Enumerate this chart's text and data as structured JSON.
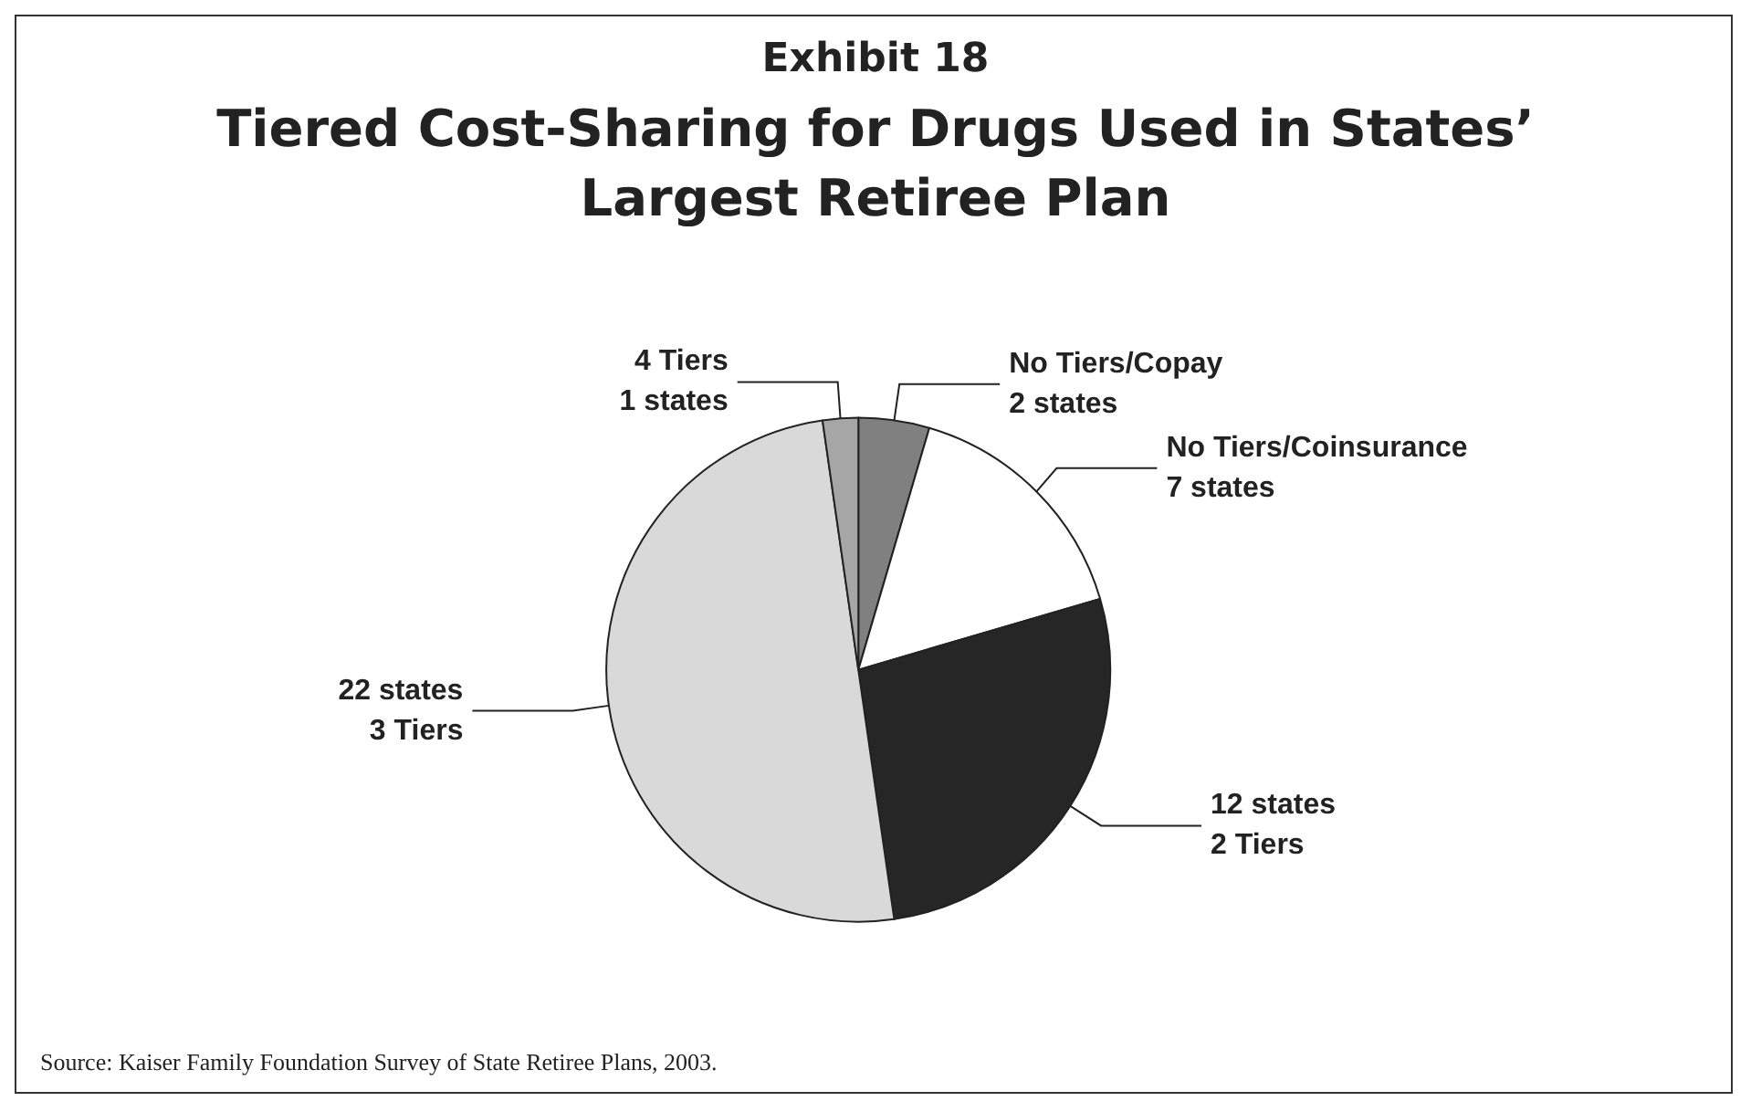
{
  "chart_data": {
    "type": "pie",
    "title": "Exhibit 18",
    "subtitle": "Tiered Cost-Sharing for Drugs Used in States’ Largest Retiree Plan",
    "categories": [
      "No Tiers/Copay",
      "No Tiers/Coinsurance",
      "2 Tiers",
      "3 Tiers",
      "4 Tiers"
    ],
    "values": [
      2,
      7,
      12,
      22,
      1
    ],
    "value_labels": [
      "2 states",
      "7 states",
      "12 states",
      "22 states",
      "1 states"
    ],
    "colors": [
      "#808080",
      "#ffffff",
      "#262626",
      "#d9d9d9",
      "#a6a6a6"
    ],
    "annotations": [
      "Source: Kaiser Family Foundation Survey of State Retiree Plans, 2003."
    ]
  }
}
